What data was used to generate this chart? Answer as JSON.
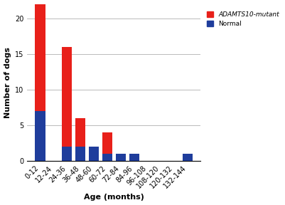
{
  "categories": [
    "0-12",
    "12-24",
    "24-36",
    "36-48",
    "48-60",
    "60-72",
    "72-84",
    "84-96",
    "96-108",
    "108-120",
    "120-132",
    "132-144"
  ],
  "red_values": [
    15,
    0,
    14,
    4,
    0,
    3,
    0,
    0,
    0,
    0,
    0,
    0
  ],
  "blue_values": [
    7,
    0,
    2,
    2,
    2,
    1,
    1,
    1,
    0,
    0,
    0,
    1
  ],
  "red_color": "#e8201a",
  "blue_color": "#1f3d9c",
  "xlabel": "Age (months)",
  "ylabel": "Number of dogs",
  "ylim": [
    0,
    22
  ],
  "yticks": [
    0,
    5,
    10,
    15,
    20
  ],
  "legend_red": "ADAMTS10-mutant",
  "legend_blue": "Normal",
  "background_color": "#ffffff",
  "grid_color": "#b0b0b0"
}
